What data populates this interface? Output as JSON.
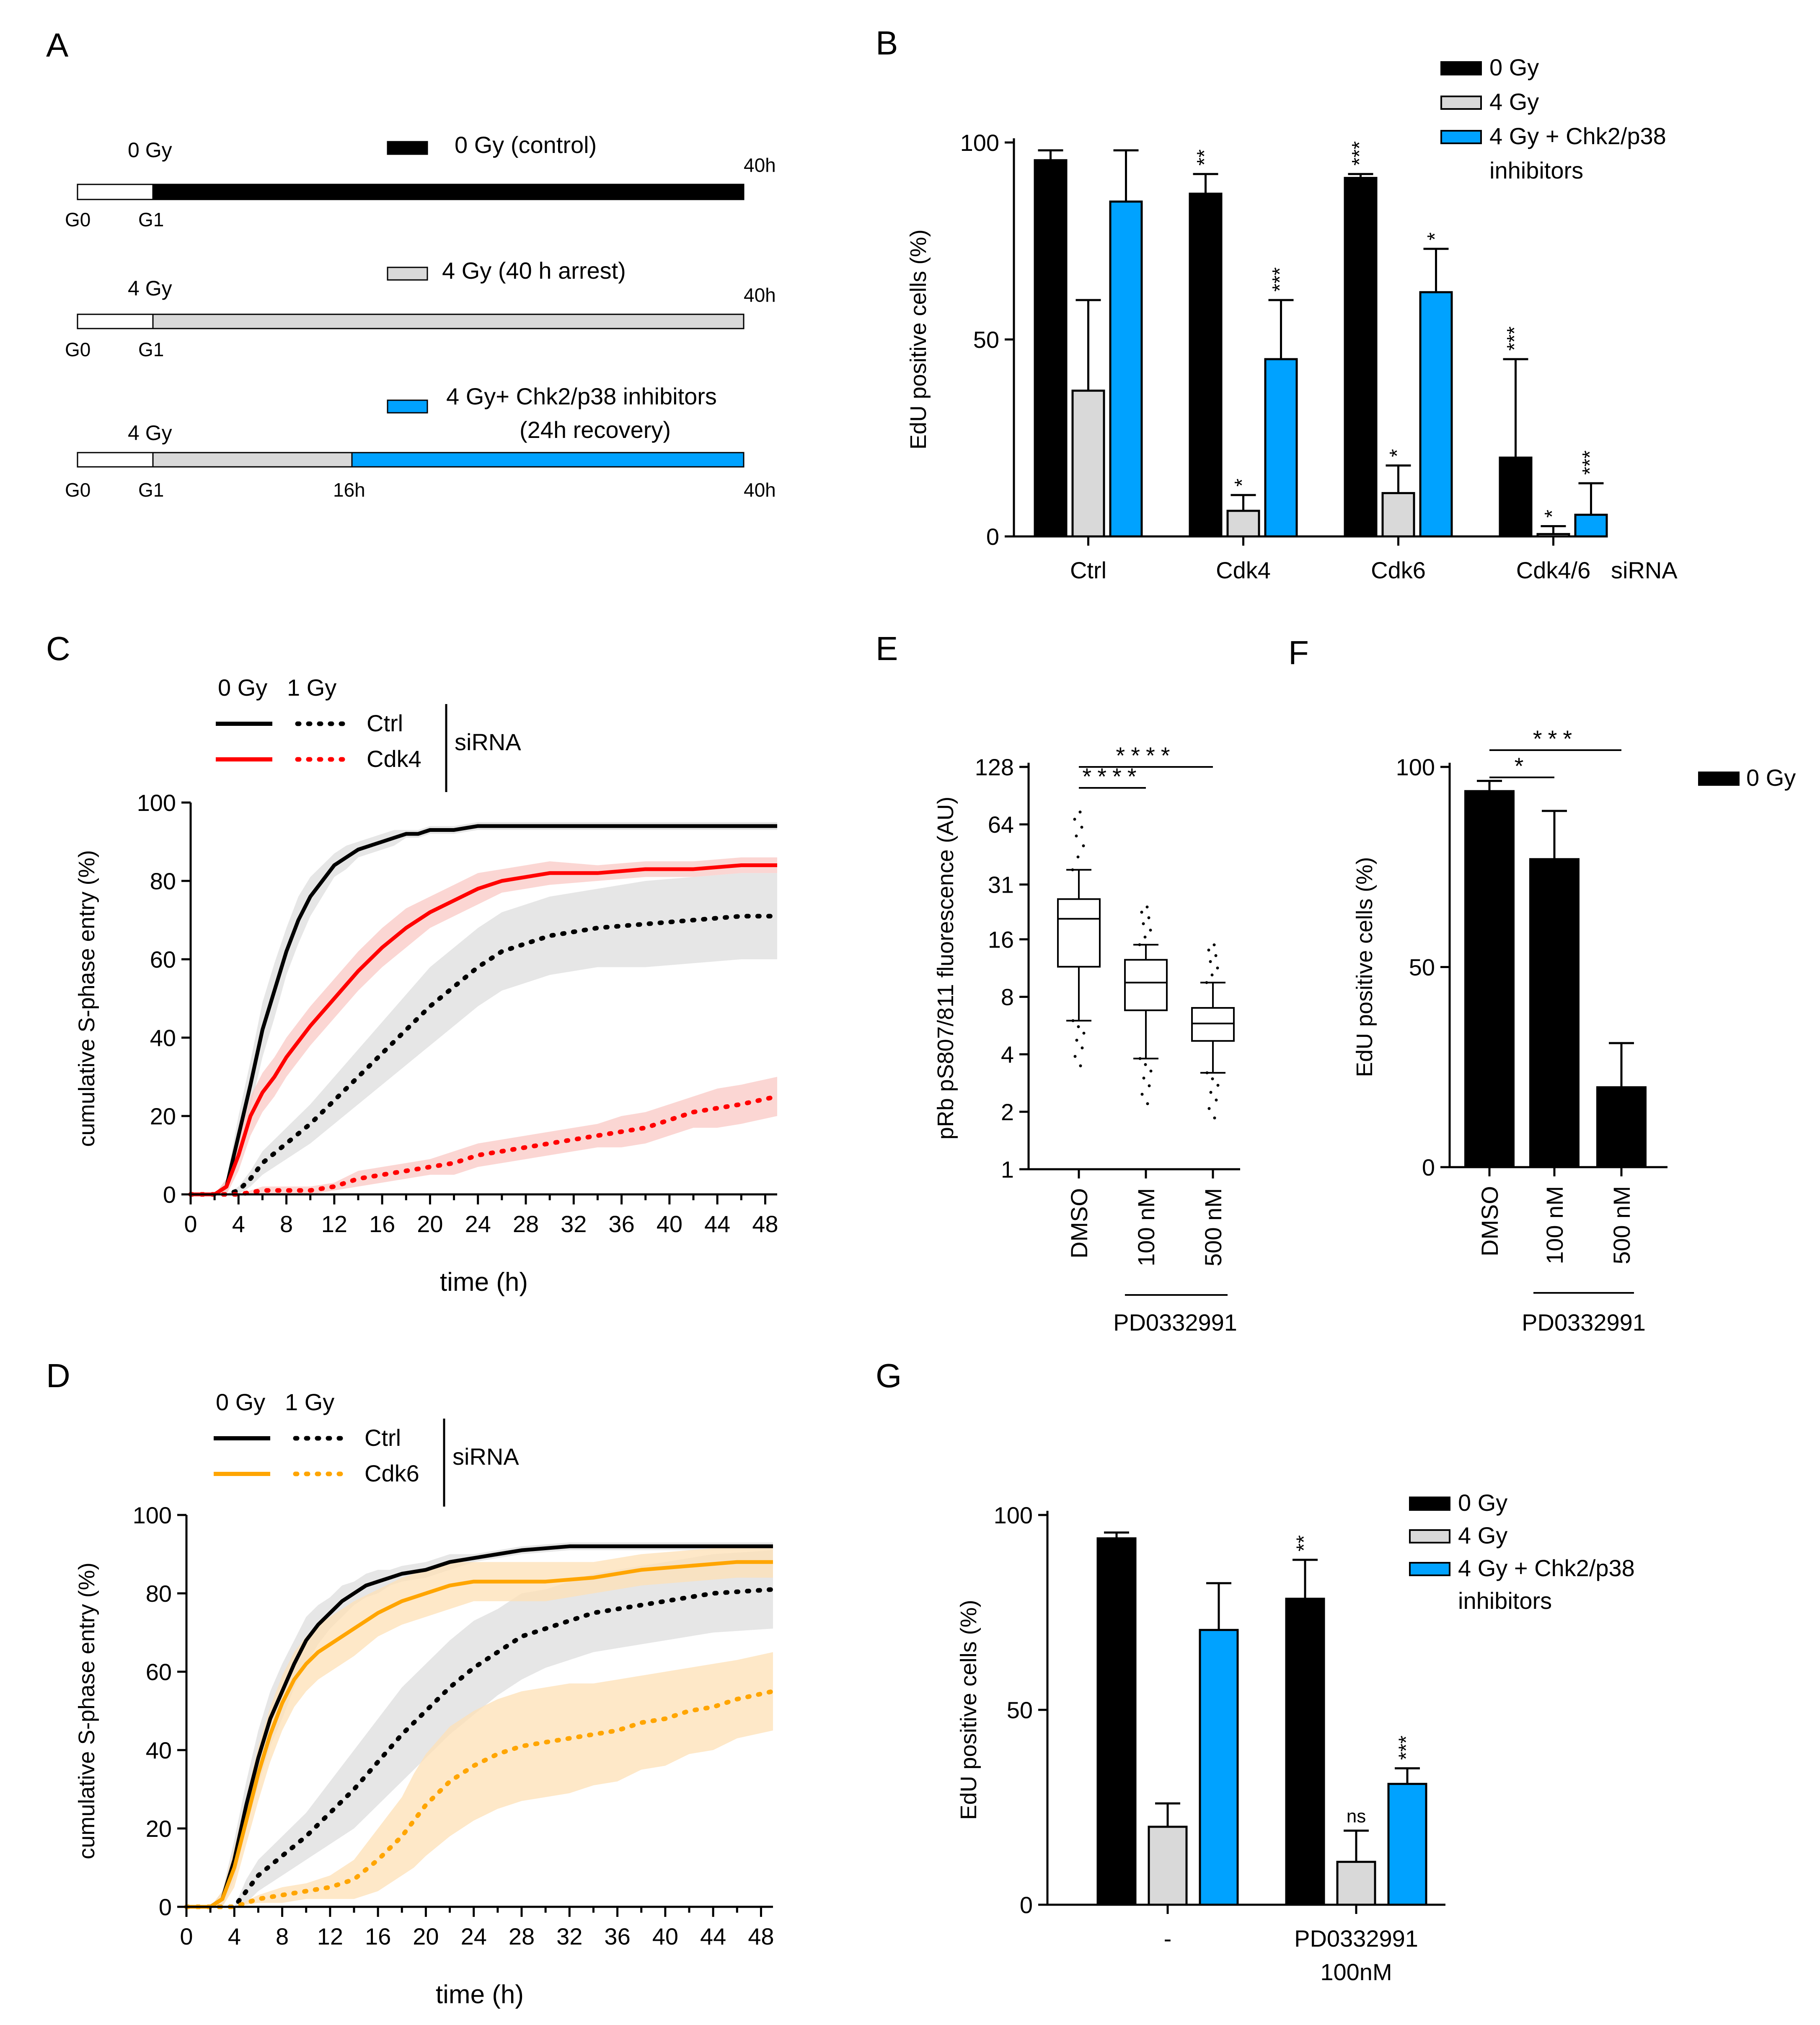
{
  "panel_labels": {
    "A": "A",
    "B": "B",
    "C": "C",
    "D": "D",
    "E": "E",
    "F": "F",
    "G": "G"
  },
  "colors": {
    "black": "#000000",
    "grey": "#d9d9d9",
    "blue": "#00a2ff",
    "red": "#ff0000",
    "red_band": "#f9c8c4",
    "orange": "#ffa500",
    "orange_band": "#fde0b6",
    "grey_band": "#dddddd"
  },
  "panel_a": {
    "rows": [
      {
        "dose": "0 Gy",
        "legend": "0 Gy (control)",
        "legend2": "",
        "tick_labels": [
          "G0",
          "G1",
          "40h"
        ]
      },
      {
        "dose": "4 Gy",
        "legend": "4 Gy (40 h arrest)",
        "legend2": "",
        "tick_labels": [
          "G0",
          "G1",
          "40h"
        ]
      },
      {
        "dose": "4 Gy",
        "legend": "4 Gy+ Chk2/p38 inhibitors",
        "legend2": "(24h recovery)",
        "tick_labels": [
          "G0",
          "G1",
          "16h",
          "40h"
        ]
      }
    ]
  },
  "chart_data": [
    {
      "id": "B",
      "type": "bar",
      "title": "",
      "ylabel": "EdU positive cells (%)",
      "ylim": [
        0,
        100
      ],
      "yticks": [
        0,
        50,
        100
      ],
      "categories": [
        "Ctrl",
        "Cdk4",
        "Cdk6",
        "Cdk4/6"
      ],
      "xsuffix": "siRNA",
      "legend": [
        "0 Gy",
        "4 Gy",
        "4 Gy + Chk2/p38",
        "inhibitors"
      ],
      "series": [
        {
          "name": "0 Gy",
          "values": [
            95.5,
            87,
            91,
            20
          ],
          "errors": [
            2.5,
            5,
            1,
            25
          ],
          "sig": [
            "",
            "**",
            "***",
            "***"
          ]
        },
        {
          "name": "4 Gy",
          "values": [
            37,
            6.5,
            11,
            0.6
          ],
          "errors": [
            23,
            4,
            7,
            2
          ],
          "sig": [
            "",
            "*",
            "*",
            "*"
          ]
        },
        {
          "name": "4 Gy + Chk2/p38 inhibitors",
          "values": [
            85,
            45,
            62,
            5.5
          ],
          "errors": [
            13,
            15,
            11,
            8
          ],
          "sig": [
            "",
            "***",
            "*",
            "***"
          ]
        }
      ]
    },
    {
      "id": "C",
      "type": "line",
      "xlabel": "time (h)",
      "ylabel": "cumulative S-phase entry (%)",
      "xlim": [
        0,
        49
      ],
      "ylim": [
        0,
        100
      ],
      "xticks": [
        0,
        4,
        8,
        12,
        16,
        20,
        24,
        28,
        32,
        36,
        40,
        44,
        48
      ],
      "yticks": [
        0,
        20,
        40,
        60,
        80,
        100
      ],
      "legend_header": [
        "0 Gy",
        "1 Gy"
      ],
      "legend_rows": [
        "Ctrl",
        "Cdk4"
      ],
      "legend_group": "siRNA",
      "series": [
        {
          "name": "Ctrl 0 Gy",
          "style": "solid",
          "color": "#000000",
          "band": "#dddddd",
          "x": [
            0,
            2,
            3,
            4,
            5,
            6,
            7,
            8,
            9,
            10,
            11,
            12,
            13,
            14,
            15,
            16,
            17,
            18,
            19,
            20,
            22,
            24,
            26,
            28,
            30,
            36,
            49
          ],
          "y": [
            0,
            0,
            2,
            15,
            28,
            42,
            52,
            62,
            70,
            76,
            80,
            84,
            86,
            88,
            89,
            90,
            91,
            92,
            92,
            93,
            93,
            94,
            94,
            94,
            94,
            94,
            94
          ],
          "spread": [
            0,
            0,
            2,
            5,
            6,
            7,
            7,
            6,
            6,
            5,
            4,
            3,
            3,
            2,
            2,
            2,
            2,
            1,
            1,
            1,
            1,
            1,
            1,
            1,
            1,
            1,
            1
          ]
        },
        {
          "name": "Ctrl 1 Gy",
          "style": "dotted",
          "color": "#000000",
          "band": "#dddddd",
          "x": [
            0,
            3,
            4,
            5,
            6,
            8,
            10,
            12,
            14,
            16,
            18,
            20,
            22,
            24,
            26,
            28,
            30,
            34,
            38,
            42,
            46,
            49
          ],
          "y": [
            0,
            0,
            1,
            4,
            8,
            13,
            18,
            24,
            30,
            36,
            42,
            48,
            53,
            58,
            62,
            64,
            66,
            68,
            69,
            70,
            71,
            71
          ],
          "spread": [
            0,
            0,
            1,
            2,
            3,
            4,
            5,
            6,
            7,
            8,
            9,
            10,
            10,
            10,
            10,
            10,
            10,
            10,
            11,
            11,
            11,
            11
          ]
        },
        {
          "name": "Cdk4 0 Gy",
          "style": "solid",
          "color": "#ff0000",
          "band": "#f9c8c4",
          "x": [
            0,
            2,
            3,
            4,
            5,
            6,
            7,
            8,
            10,
            12,
            14,
            16,
            18,
            20,
            22,
            24,
            26,
            28,
            30,
            34,
            38,
            42,
            46,
            49
          ],
          "y": [
            0,
            0,
            2,
            10,
            20,
            26,
            30,
            35,
            43,
            50,
            57,
            63,
            68,
            72,
            75,
            78,
            80,
            81,
            82,
            82,
            83,
            83,
            84,
            84
          ],
          "spread": [
            0,
            0,
            2,
            4,
            5,
            5,
            5,
            5,
            5,
            5,
            5,
            5,
            5,
            4,
            4,
            4,
            3,
            3,
            3,
            2,
            2,
            2,
            2,
            2
          ]
        },
        {
          "name": "Cdk4 1 Gy",
          "style": "dotted",
          "color": "#ff0000",
          "band": "#f9c8c4",
          "x": [
            0,
            4,
            6,
            8,
            10,
            12,
            14,
            16,
            18,
            20,
            22,
            24,
            26,
            28,
            30,
            32,
            34,
            36,
            38,
            40,
            42,
            44,
            46,
            49
          ],
          "y": [
            0,
            0,
            1,
            1,
            1,
            2,
            4,
            5,
            6,
            7,
            8,
            10,
            11,
            12,
            13,
            14,
            15,
            16,
            17,
            19,
            21,
            22,
            23,
            25
          ],
          "spread": [
            0,
            0,
            1,
            1,
            1,
            1,
            2,
            2,
            2,
            2,
            3,
            3,
            3,
            3,
            3,
            3,
            3,
            4,
            4,
            4,
            4,
            5,
            5,
            5
          ]
        }
      ]
    },
    {
      "id": "D",
      "type": "line",
      "xlabel": "time (h)",
      "ylabel": "cumulative S-phase entry (%)",
      "xlim": [
        0,
        49
      ],
      "ylim": [
        0,
        100
      ],
      "xticks": [
        0,
        4,
        8,
        12,
        16,
        20,
        24,
        28,
        32,
        36,
        40,
        44,
        48
      ],
      "yticks": [
        0,
        20,
        40,
        60,
        80,
        100
      ],
      "legend_header": [
        "0 Gy",
        "1 Gy"
      ],
      "legend_rows": [
        "Ctrl",
        "Cdk6"
      ],
      "legend_group": "siRNA",
      "series": [
        {
          "name": "Ctrl 0 Gy",
          "style": "solid",
          "color": "#000000",
          "band": "#dddddd",
          "x": [
            0,
            2,
            3,
            4,
            5,
            6,
            7,
            8,
            9,
            10,
            11,
            12,
            13,
            14,
            15,
            16,
            17,
            18,
            20,
            22,
            24,
            26,
            28,
            32,
            36,
            49
          ],
          "y": [
            0,
            0,
            2,
            12,
            26,
            38,
            48,
            55,
            62,
            68,
            72,
            75,
            78,
            80,
            82,
            83,
            84,
            85,
            86,
            88,
            89,
            90,
            91,
            92,
            92,
            92
          ],
          "spread": [
            0,
            0,
            2,
            5,
            6,
            7,
            7,
            7,
            6,
            6,
            5,
            4,
            4,
            3,
            3,
            3,
            2,
            2,
            2,
            2,
            1,
            1,
            1,
            1,
            1,
            1
          ]
        },
        {
          "name": "Ctrl 1 Gy",
          "style": "dotted",
          "color": "#000000",
          "band": "#dddddd",
          "x": [
            0,
            4,
            5,
            6,
            8,
            10,
            12,
            14,
            16,
            18,
            20,
            22,
            24,
            26,
            28,
            30,
            32,
            34,
            36,
            40,
            44,
            49
          ],
          "y": [
            0,
            0,
            4,
            8,
            13,
            18,
            24,
            30,
            37,
            44,
            50,
            56,
            61,
            65,
            69,
            71,
            73,
            75,
            76,
            78,
            80,
            81
          ],
          "spread": [
            0,
            0,
            3,
            4,
            5,
            6,
            8,
            10,
            11,
            12,
            12,
            12,
            12,
            11,
            11,
            10,
            10,
            10,
            10,
            10,
            10,
            10
          ]
        },
        {
          "name": "Cdk6 0 Gy",
          "style": "solid",
          "color": "#ffa500",
          "band": "#fde0b6",
          "x": [
            0,
            2,
            3,
            4,
            5,
            6,
            7,
            8,
            9,
            10,
            11,
            12,
            14,
            16,
            18,
            20,
            22,
            24,
            26,
            28,
            30,
            34,
            38,
            42,
            46,
            49
          ],
          "y": [
            0,
            0,
            2,
            10,
            22,
            34,
            44,
            52,
            58,
            62,
            65,
            67,
            71,
            75,
            78,
            80,
            82,
            83,
            83,
            83,
            83,
            84,
            86,
            87,
            88,
            88
          ],
          "spread": [
            0,
            0,
            2,
            5,
            6,
            7,
            7,
            7,
            7,
            7,
            7,
            7,
            7,
            6,
            6,
            6,
            6,
            5,
            5,
            5,
            5,
            4,
            4,
            4,
            4,
            4
          ]
        },
        {
          "name": "Cdk6 1 Gy",
          "style": "dotted",
          "color": "#ffa500",
          "band": "#fde0b6",
          "x": [
            0,
            4,
            6,
            8,
            10,
            12,
            14,
            16,
            18,
            19,
            20,
            22,
            24,
            26,
            28,
            30,
            32,
            34,
            36,
            38,
            40,
            42,
            44,
            46,
            49
          ],
          "y": [
            0,
            0,
            2,
            3,
            4,
            5,
            7,
            12,
            18,
            22,
            26,
            32,
            36,
            39,
            41,
            42,
            43,
            44,
            45,
            47,
            48,
            50,
            51,
            53,
            55
          ],
          "spread": [
            0,
            0,
            1,
            2,
            2,
            3,
            5,
            8,
            10,
            12,
            13,
            14,
            14,
            14,
            14,
            14,
            14,
            13,
            13,
            12,
            12,
            11,
            11,
            10,
            10
          ]
        }
      ]
    },
    {
      "id": "E",
      "type": "box",
      "ylabel": "pRb pS807/811 fluorescence (AU)",
      "yscale": "log2",
      "ylim": [
        1,
        128
      ],
      "yticks": [
        1,
        2,
        4,
        8,
        16,
        31,
        64,
        128
      ],
      "categories": [
        "DMSO",
        "100 nM",
        "500 nM"
      ],
      "group_label": "PD0332991",
      "boxes": [
        {
          "q1": 11.5,
          "median": 20.5,
          "q3": 26,
          "whisker_low": 6,
          "whisker_high": 37
        },
        {
          "q1": 6.8,
          "median": 9.5,
          "q3": 12.5,
          "whisker_low": 3.8,
          "whisker_high": 15
        },
        {
          "q1": 4.7,
          "median": 5.8,
          "q3": 7,
          "whisker_low": 3.2,
          "whisker_high": 9.5
        }
      ],
      "comparisons": [
        {
          "from": 0,
          "to": 1,
          "label": "****"
        },
        {
          "from": 0,
          "to": 2,
          "label": "****"
        }
      ]
    },
    {
      "id": "F",
      "type": "bar",
      "ylabel": "EdU positive cells (%)",
      "ylim": [
        0,
        100
      ],
      "yticks": [
        0,
        50,
        100
      ],
      "categories": [
        "DMSO",
        "100 nM",
        "500 nM"
      ],
      "group_label": "PD0332991",
      "legend": [
        "0 Gy"
      ],
      "series": [
        {
          "name": "0 Gy",
          "values": [
            94,
            77,
            20
          ],
          "errors": [
            2.5,
            12,
            11
          ]
        }
      ],
      "comparisons": [
        {
          "from": 0,
          "to": 1,
          "label": "*"
        },
        {
          "from": 0,
          "to": 2,
          "label": "***"
        }
      ]
    },
    {
      "id": "G",
      "type": "bar",
      "ylabel": "EdU positive cells (%)",
      "ylim": [
        0,
        100
      ],
      "yticks": [
        0,
        50,
        100
      ],
      "categories": [
        "-",
        "PD0332991"
      ],
      "category_sub": [
        "",
        "100nM"
      ],
      "legend": [
        "0 Gy",
        "4 Gy",
        "4 Gy + Chk2/p38",
        "inhibitors"
      ],
      "series": [
        {
          "name": "0 Gy",
          "values": [
            94,
            78.5
          ],
          "errors": [
            1.5,
            10
          ],
          "sig": [
            "",
            "**"
          ]
        },
        {
          "name": "4 Gy",
          "values": [
            20,
            11
          ],
          "errors": [
            6,
            8
          ],
          "sig": [
            "",
            "ns"
          ]
        },
        {
          "name": "4 Gy + Chk2/p38 inhibitors",
          "values": [
            70.5,
            31
          ],
          "errors": [
            12,
            4
          ],
          "sig": [
            "",
            "***"
          ]
        }
      ]
    }
  ]
}
